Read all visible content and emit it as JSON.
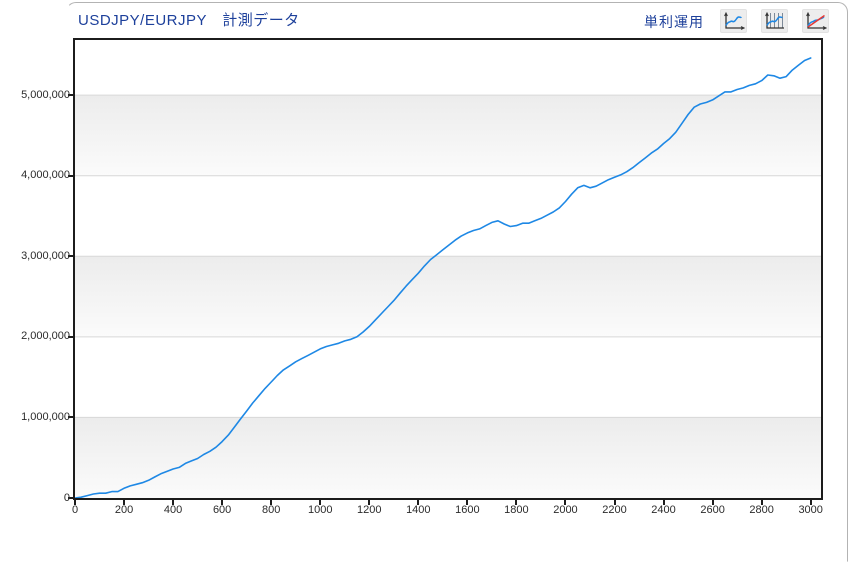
{
  "header": {
    "title": "USDJPY/EURJPY　計測データ",
    "legend_label": "単利運用"
  },
  "toolbar": {
    "buttons": [
      {
        "name": "line-chart-button",
        "icon": "line-chart-icon"
      },
      {
        "name": "line-chart-bars-button",
        "icon": "line-chart-with-bars-icon"
      },
      {
        "name": "line-chart-trend-button",
        "icon": "line-chart-with-trendline-icon"
      }
    ]
  },
  "colors": {
    "title_blue": "#1d409b",
    "series_blue": "#1e88e5",
    "trend_red": "#e53935",
    "grid_line": "#d8d8d8",
    "band_top": "#ececec",
    "band_bottom": "#fbfbfb",
    "plot_frame": "#1c1c1c",
    "panel_border": "#b3b3b3",
    "tick_text": "#2b2b2b"
  },
  "chart_data": {
    "type": "line",
    "title": "USDJPY/EURJPY　計測データ",
    "xlabel": "",
    "ylabel": "",
    "grid": true,
    "legend_position": "top-right",
    "xlim": [
      0,
      3042
    ],
    "ylim": [
      0,
      5684000
    ],
    "x_ticks": [
      0,
      200,
      400,
      600,
      800,
      1000,
      1200,
      1400,
      1600,
      1800,
      2000,
      2200,
      2400,
      2600,
      2800,
      3000
    ],
    "x_tick_labels": [
      "0",
      "200",
      "400",
      "600",
      "800",
      "1000",
      "1200",
      "1400",
      "1600",
      "1800",
      "2000",
      "2200",
      "2400",
      "2600",
      "2800",
      "3000"
    ],
    "y_ticks": [
      0,
      1000000,
      2000000,
      3000000,
      4000000,
      5000000
    ],
    "y_tick_labels": [
      "0",
      "1,000,000",
      "2,000,000",
      "3,000,000",
      "4,000,000",
      "5,000,000"
    ],
    "shaded_bands": [
      [
        0,
        1000000
      ],
      [
        2000000,
        3000000
      ],
      [
        4000000,
        5000000
      ]
    ],
    "series": [
      {
        "name": "単利運用",
        "color": "#1e88e5",
        "x_start": 0,
        "x_step": 25,
        "x": [
          0,
          25,
          50,
          75,
          100,
          125,
          150,
          175,
          200,
          225,
          250,
          275,
          300,
          325,
          350,
          375,
          400,
          425,
          450,
          475,
          500,
          525,
          550,
          575,
          600,
          625,
          650,
          675,
          700,
          725,
          750,
          775,
          800,
          825,
          850,
          875,
          900,
          925,
          950,
          975,
          1000,
          1025,
          1050,
          1075,
          1100,
          1125,
          1150,
          1175,
          1200,
          1225,
          1250,
          1275,
          1300,
          1325,
          1350,
          1375,
          1400,
          1425,
          1450,
          1475,
          1500,
          1525,
          1550,
          1575,
          1600,
          1625,
          1650,
          1675,
          1700,
          1725,
          1750,
          1775,
          1800,
          1825,
          1850,
          1875,
          1900,
          1925,
          1950,
          1975,
          2000,
          2025,
          2050,
          2075,
          2100,
          2125,
          2150,
          2175,
          2200,
          2225,
          2250,
          2275,
          2300,
          2325,
          2350,
          2375,
          2400,
          2425,
          2450,
          2475,
          2500,
          2525,
          2550,
          2575,
          2600,
          2625,
          2650,
          2675,
          2700,
          2725,
          2750,
          2775,
          2800,
          2825,
          2850,
          2875,
          2900,
          2925,
          2950,
          2975,
          3000
        ],
        "values": [
          0,
          10000,
          30000,
          50000,
          60000,
          60000,
          80000,
          80000,
          120000,
          150000,
          170000,
          190000,
          220000,
          260000,
          300000,
          330000,
          360000,
          380000,
          430000,
          460000,
          490000,
          540000,
          580000,
          630000,
          700000,
          780000,
          880000,
          980000,
          1080000,
          1180000,
          1270000,
          1360000,
          1440000,
          1520000,
          1590000,
          1640000,
          1690000,
          1730000,
          1770000,
          1810000,
          1850000,
          1880000,
          1900000,
          1920000,
          1950000,
          1970000,
          2000000,
          2060000,
          2130000,
          2210000,
          2290000,
          2370000,
          2450000,
          2540000,
          2630000,
          2710000,
          2790000,
          2880000,
          2960000,
          3020000,
          3080000,
          3140000,
          3200000,
          3250000,
          3290000,
          3320000,
          3340000,
          3380000,
          3420000,
          3440000,
          3400000,
          3370000,
          3380000,
          3410000,
          3410000,
          3440000,
          3470000,
          3510000,
          3550000,
          3600000,
          3680000,
          3770000,
          3850000,
          3880000,
          3850000,
          3870000,
          3910000,
          3950000,
          3980000,
          4010000,
          4050000,
          4100000,
          4160000,
          4220000,
          4280000,
          4330000,
          4400000,
          4460000,
          4540000,
          4650000,
          4760000,
          4850000,
          4890000,
          4910000,
          4940000,
          4990000,
          5040000,
          5040000,
          5070000,
          5090000,
          5120000,
          5140000,
          5180000,
          5250000,
          5240000,
          5210000,
          5230000,
          5310000,
          5370000,
          5430000,
          5460000
        ]
      }
    ]
  }
}
